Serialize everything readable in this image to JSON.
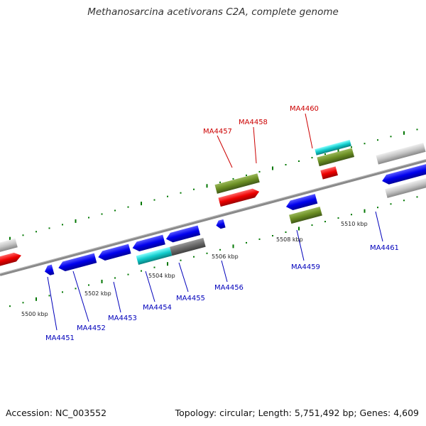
{
  "title": "Methanosarcina acetivorans C2A, complete genome",
  "footer": {
    "accession": "Accession: NC_003552",
    "summary": "Topology: circular; Length: 5,751,492 bp; Genes: 4,609"
  },
  "colors": {
    "forward_label": "#cc0000",
    "reverse_label": "#0000bb",
    "backbone": "#888888",
    "ticks": "#007700"
  },
  "scale_labels": [
    "5500 kbp",
    "5502 kbp",
    "5504 kbp",
    "5506 kbp",
    "5508 kbp",
    "5510 kbp"
  ],
  "gene_labels": [
    {
      "text": "MA4451",
      "strand": "reverse"
    },
    {
      "text": "MA4452",
      "strand": "reverse"
    },
    {
      "text": "MA4453",
      "strand": "reverse"
    },
    {
      "text": "MA4454",
      "strand": "reverse"
    },
    {
      "text": "MA4455",
      "strand": "reverse"
    },
    {
      "text": "MA4456",
      "strand": "reverse"
    },
    {
      "text": "MA4457",
      "strand": "forward"
    },
    {
      "text": "MA4458",
      "strand": "forward"
    },
    {
      "text": "MA4459",
      "strand": "reverse"
    },
    {
      "text": "MA4460",
      "strand": "forward"
    },
    {
      "text": "MA4461",
      "strand": "reverse"
    }
  ]
}
